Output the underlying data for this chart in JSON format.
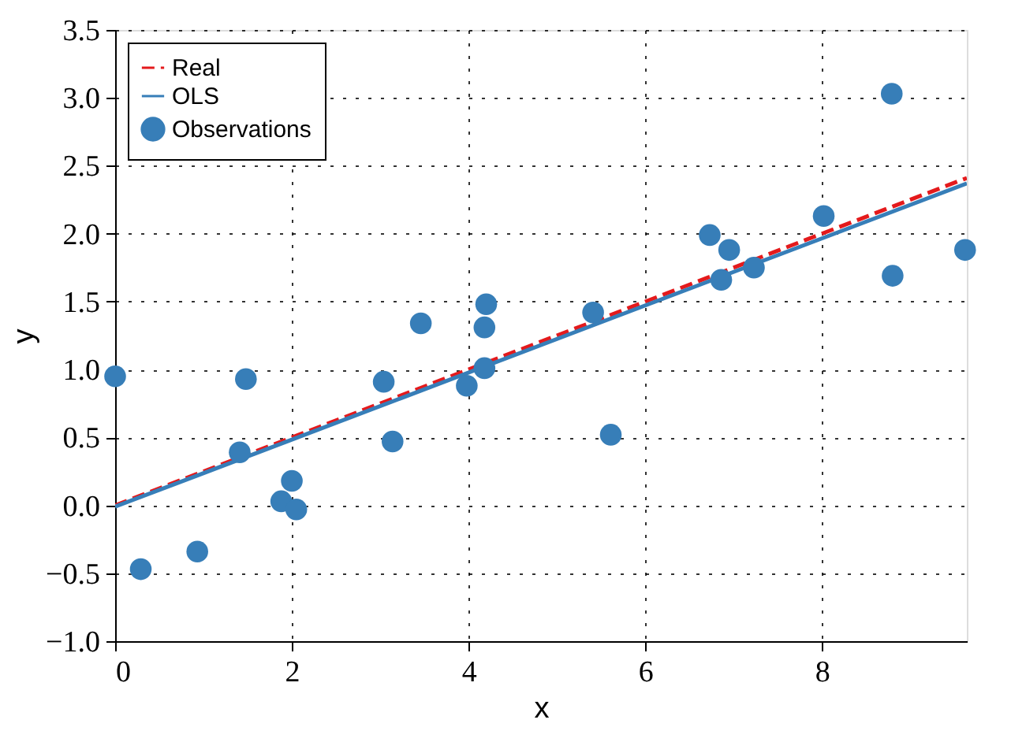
{
  "chart_data": {
    "type": "scatter",
    "xlabel": "x",
    "ylabel": "y",
    "xlim": [
      0,
      9.64
    ],
    "ylim": [
      -1.0,
      3.5
    ],
    "xticks": [
      0,
      2,
      4,
      6,
      8
    ],
    "yticks": [
      {
        "value": -1.0,
        "label": "−1.0"
      },
      {
        "value": -0.5,
        "label": "−0.5"
      },
      {
        "value": 0,
        "label": "0.0"
      },
      {
        "value": 0.5,
        "label": "0.5"
      },
      {
        "value": 1.0,
        "label": "1.0"
      },
      {
        "value": 1.5,
        "label": "1.5"
      },
      {
        "value": 2.0,
        "label": "2.0"
      },
      {
        "value": 2.5,
        "label": "2.5"
      },
      {
        "value": 3.0,
        "label": "3.0"
      },
      {
        "value": 3.5,
        "label": "3.5"
      }
    ],
    "grid": true,
    "legend": "top left",
    "series": [
      {
        "name": "Real",
        "type": "line",
        "color": "#e41a1c",
        "line_style": "dashed",
        "x": [
          0,
          9.64
        ],
        "values": [
          0,
          2.41
        ]
      },
      {
        "name": "OLS",
        "type": "line",
        "color": "#377eb8",
        "line_style": "solid",
        "x": [
          0,
          9.64
        ],
        "values": [
          -0.01,
          2.37
        ]
      },
      {
        "name": "Observations",
        "color": "#377eb8",
        "marker": "circle",
        "x": [
          0,
          0.29,
          0.93,
          1.41,
          1.48,
          1.88,
          2.0,
          2.05,
          3.04,
          3.14,
          3.46,
          3.98,
          4.18,
          4.2,
          4.18,
          5.41,
          5.61,
          6.73,
          6.95,
          6.86,
          7.23,
          8.02,
          8.79,
          8.8,
          9.62
        ],
        "values": [
          0.95,
          -0.47,
          -0.34,
          0.39,
          0.93,
          0.03,
          0.18,
          -0.03,
          0.91,
          0.47,
          1.34,
          0.88,
          1.01,
          1.48,
          1.31,
          1.42,
          0.52,
          1.99,
          1.88,
          1.66,
          1.75,
          2.13,
          3.03,
          1.69,
          1.88
        ]
      }
    ]
  }
}
